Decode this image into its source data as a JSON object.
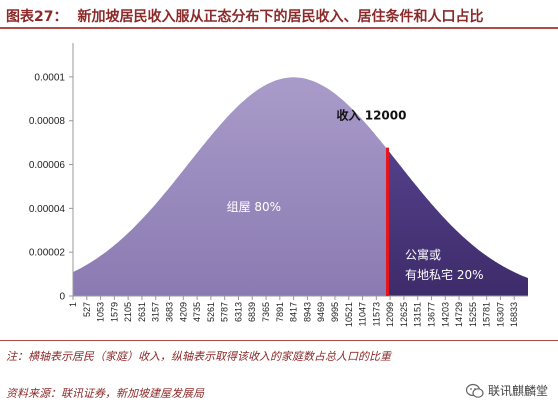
{
  "header": {
    "figure_label": "图表27：",
    "title": "新加坡居民收入服从正态分布下的居民收入、居住条件和人口占比"
  },
  "chart_data": {
    "type": "area",
    "title": "",
    "xlabel": "",
    "ylabel": "",
    "x_ticks": [
      "1",
      "527",
      "1053",
      "1579",
      "2105",
      "2631",
      "3157",
      "3683",
      "4209",
      "4735",
      "5261",
      "5787",
      "6313",
      "6839",
      "7365",
      "7891",
      "8417",
      "8943",
      "9469",
      "9995",
      "10521",
      "11047",
      "11573",
      "12099",
      "12625",
      "13151",
      "13677",
      "14203",
      "14729",
      "15255",
      "15781",
      "16307",
      "16833"
    ],
    "y_ticks": [
      "0",
      "0.00002",
      "0.00004",
      "0.00006",
      "0.00008",
      "0.0001"
    ],
    "ylim": [
      0,
      0.00011
    ],
    "xlim": [
      1,
      17359
    ],
    "distribution": {
      "mean": 8417,
      "std": 4000,
      "peak": 9.98e-05
    },
    "threshold": {
      "x": 12000,
      "label": "收入 12000",
      "color": "#e8141b"
    },
    "series": [
      {
        "label": "组屋 80%",
        "range": [
          1,
          12000
        ],
        "color": "#9a8bbd"
      },
      {
        "label_lines": [
          "公寓或",
          "有地私宅 20%"
        ],
        "range": [
          12000,
          17359
        ],
        "color": "#4a3477"
      }
    ],
    "grid": false
  },
  "footer": {
    "note": "注：横轴表示居民（家庭）收入，纵轴表示取得该收入的家庭数占总人口的比重",
    "source": "资料来源：联讯证券，新加坡建屋发展局",
    "watermark": "联讯麒麟堂"
  }
}
